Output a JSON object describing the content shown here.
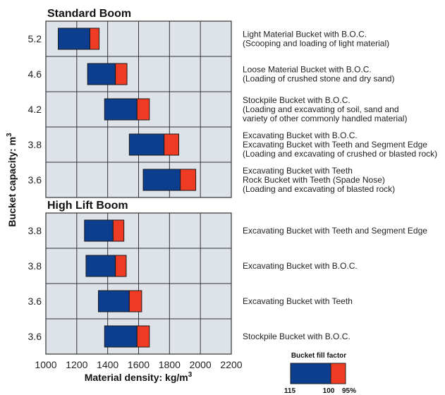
{
  "chart_data": {
    "type": "bar",
    "xlabel": "Material density: kg/m",
    "xlabel_sup": "3",
    "ylabel": "Bucket capacity: m",
    "ylabel_sup": "3",
    "xlim": [
      1000,
      2200
    ],
    "xticks": [
      1000,
      1200,
      1400,
      1600,
      1800,
      2000,
      2200
    ],
    "grid": true,
    "colors": {
      "fill_115_to_100": "#0c3d8f",
      "fill_100_to_95": "#ee3b24",
      "panel": "#dde3e8",
      "grid": "#333333"
    },
    "sections": [
      {
        "title": "Standard Boom",
        "rows": [
          {
            "capacity": "5.2",
            "range_115_to_100": [
              1080,
              1285
            ],
            "range_100_to_95": [
              1285,
              1345
            ],
            "description": [
              "Light Material Bucket with B.O.C.",
              "(Scooping and loading of light material)"
            ]
          },
          {
            "capacity": "4.6",
            "range_115_to_100": [
              1270,
              1450
            ],
            "range_100_to_95": [
              1450,
              1525
            ],
            "description": [
              "Loose Material Bucket with B.O.C.",
              "(Loading of crushed stone and dry sand)"
            ]
          },
          {
            "capacity": "4.2",
            "range_115_to_100": [
              1380,
              1590
            ],
            "range_100_to_95": [
              1590,
              1670
            ],
            "description": [
              "Stockpile Bucket with B.O.C.",
              "(Loading and excavating of soil, sand and",
              "variety of other commonly handled material)"
            ]
          },
          {
            "capacity": "3.8",
            "range_115_to_100": [
              1540,
              1765
            ],
            "range_100_to_95": [
              1765,
              1860
            ],
            "description": [
              "Excavating Bucket with B.O.C.",
              "Excavating Bucket with Teeth and Segment Edge",
              "(Loading and excavating of crushed or blasted rock)"
            ]
          },
          {
            "capacity": "3.6",
            "range_115_to_100": [
              1630,
              1870
            ],
            "range_100_to_95": [
              1870,
              1970
            ],
            "description": [
              "Excavating Bucket with Teeth",
              "Rock Bucket with Teeth (Spade Nose)",
              "(Loading and excavating of blasted rock)"
            ]
          }
        ]
      },
      {
        "title": "High Lift Boom",
        "rows": [
          {
            "capacity": "3.8",
            "range_115_to_100": [
              1250,
              1435
            ],
            "range_100_to_95": [
              1435,
              1505
            ],
            "description": [
              "Excavating Bucket with Teeth and Segment Edge"
            ]
          },
          {
            "capacity": "3.8",
            "range_115_to_100": [
              1260,
              1450
            ],
            "range_100_to_95": [
              1450,
              1520
            ],
            "description": [
              "Excavating Bucket with B.O.C."
            ]
          },
          {
            "capacity": "3.6",
            "range_115_to_100": [
              1340,
              1540
            ],
            "range_100_to_95": [
              1540,
              1620
            ],
            "description": [
              "Excavating Bucket with Teeth"
            ]
          },
          {
            "capacity": "3.6",
            "range_115_to_100": [
              1380,
              1590
            ],
            "range_100_to_95": [
              1590,
              1670
            ],
            "description": [
              "Stockpile Bucket with B.O.C."
            ]
          }
        ]
      }
    ],
    "legend": {
      "title": "Bucket fill factor",
      "labels": [
        "115",
        "100",
        "95%"
      ]
    }
  }
}
